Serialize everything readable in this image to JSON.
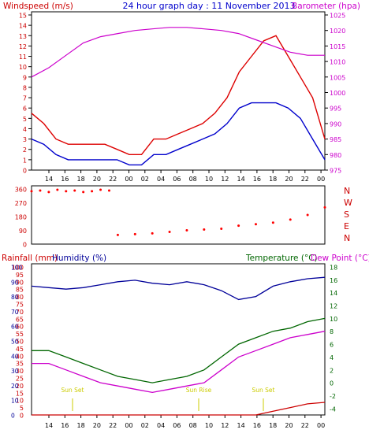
{
  "title": "24 hour graph day : 11 November 2013",
  "colors": {
    "wind": "#ff0000",
    "gust": "#dd0000",
    "avgwind": "#0000cc",
    "baro": "#cc00cc",
    "dir": "#ff0000",
    "humidity": "#000099",
    "temperature": "#006600",
    "dewpoint": "#cc00cc",
    "rain": "#cc0000",
    "sun": "#cccc00",
    "axis": "#000000",
    "grid": "#dddddd"
  },
  "chart_data": [
    {
      "id": "wind",
      "type": "line",
      "left_label": "Windspeed (m/s)",
      "right_label": "Barometer (hpa)",
      "left_ticks": [
        0,
        1,
        2,
        3,
        4,
        5,
        6,
        7,
        8,
        9,
        10,
        11,
        12,
        13,
        14,
        15
      ],
      "right_ticks": [
        975,
        980,
        985,
        990,
        995,
        1000,
        1005,
        1010,
        1015,
        1020,
        1025
      ],
      "x_ticks": [
        "14",
        "16",
        "18",
        "20",
        "22",
        "00",
        "02",
        "04",
        "06",
        "08",
        "10",
        "12",
        "14",
        "16",
        "18",
        "20",
        "22",
        "00"
      ],
      "series": [
        {
          "key": "gust",
          "x": [
            0,
            1,
            2,
            3,
            4,
            5,
            6,
            7,
            8,
            9,
            10,
            11,
            12,
            13,
            14,
            15,
            16,
            17,
            18,
            19,
            20,
            21,
            22,
            23,
            24
          ],
          "values": [
            5.5,
            4.5,
            3,
            2.5,
            2.5,
            2.5,
            2.5,
            2,
            1.5,
            1.5,
            3,
            3,
            3.5,
            4,
            4.5,
            5.5,
            7,
            9.5,
            11,
            12.5,
            13,
            11,
            9,
            7,
            3
          ]
        },
        {
          "key": "avgwind",
          "x": [
            0,
            1,
            2,
            3,
            4,
            5,
            6,
            7,
            8,
            9,
            10,
            11,
            12,
            13,
            14,
            15,
            16,
            17,
            18,
            19,
            20,
            21,
            22,
            23,
            24
          ],
          "values": [
            3,
            2.5,
            1.5,
            1,
            1,
            1,
            1,
            1,
            0.5,
            0.5,
            1.5,
            1.5,
            2,
            2.5,
            3,
            3.5,
            4.5,
            6,
            6.5,
            6.5,
            6.5,
            6,
            5,
            3,
            1
          ]
        },
        {
          "key": "baro",
          "x": [
            0,
            2,
            4,
            6,
            8,
            10,
            12,
            14,
            16,
            18,
            20,
            22,
            24,
            26,
            28,
            30,
            32,
            34
          ],
          "values": [
            1005,
            1008,
            1012,
            1016,
            1018,
            1019,
            1020,
            1020.5,
            1021,
            1021,
            1020.5,
            1020,
            1019,
            1017,
            1015,
            1013,
            1012,
            1012
          ]
        }
      ]
    },
    {
      "id": "direction",
      "type": "scatter",
      "left_ticks": [
        0,
        90,
        180,
        270,
        360
      ],
      "right_ticks": [
        "N",
        "W",
        "S",
        "E",
        "N"
      ],
      "points": [
        {
          "x": [
            0,
            1,
            2,
            3,
            4,
            5,
            6,
            7,
            8,
            9
          ],
          "values": [
            345,
            350,
            340,
            355,
            345,
            350,
            340,
            345,
            355,
            350
          ]
        },
        {
          "x": [
            10,
            12,
            14,
            16,
            18,
            20,
            22,
            24,
            26,
            28,
            30,
            32,
            34
          ],
          "values": [
            60,
            65,
            70,
            80,
            90,
            95,
            100,
            120,
            130,
            140,
            160,
            190,
            240
          ]
        }
      ]
    },
    {
      "id": "temp",
      "type": "line",
      "left_label_1": "Rainfall (mm)",
      "left_label_2": "Humidity (%)",
      "right_label_1": "Temperature (°C)",
      "right_label_2": "Dew Point (°C)",
      "left_ticks_1": [
        0,
        5,
        10,
        15,
        20,
        25,
        30,
        35,
        40,
        45,
        50,
        55,
        60,
        65,
        70,
        75,
        80,
        85,
        90,
        95,
        100
      ],
      "left_ticks_2": [
        0,
        10,
        20,
        30,
        40,
        50,
        60,
        70,
        80,
        90,
        100
      ],
      "right_ticks": [
        -4,
        -2,
        0,
        2,
        4,
        6,
        8,
        10,
        12,
        14,
        16,
        18
      ],
      "x_ticks": [
        "14",
        "16",
        "18",
        "20",
        "22",
        "00",
        "02",
        "04",
        "06",
        "08",
        "10",
        "12",
        "14",
        "16",
        "18",
        "20",
        "22",
        "00"
      ],
      "events": [
        "Sun Set",
        "Sun Rise",
        "Sun Set"
      ],
      "series": [
        {
          "key": "humidity",
          "x": [
            0,
            2,
            4,
            6,
            8,
            10,
            12,
            14,
            16,
            18,
            20,
            22,
            24,
            26,
            28,
            30,
            32,
            34
          ],
          "values": [
            87,
            86,
            85,
            86,
            88,
            90,
            91,
            89,
            88,
            90,
            88,
            84,
            78,
            80,
            87,
            90,
            92,
            93
          ]
        },
        {
          "key": "temperature",
          "x": [
            0,
            2,
            4,
            6,
            8,
            10,
            12,
            14,
            16,
            18,
            20,
            22,
            24,
            26,
            28,
            30,
            32,
            34
          ],
          "values": [
            5,
            5,
            4,
            3,
            2,
            1,
            0.5,
            0,
            0.5,
            1,
            2,
            4,
            6,
            7,
            8,
            8.5,
            9.5,
            10
          ]
        },
        {
          "key": "dewpoint",
          "x": [
            0,
            2,
            4,
            6,
            8,
            10,
            12,
            14,
            16,
            18,
            20,
            22,
            24,
            26,
            28,
            30,
            32,
            34
          ],
          "values": [
            3,
            3,
            2,
            1,
            0,
            -0.5,
            -1,
            -1.5,
            -1,
            -0.5,
            0,
            2,
            4,
            5,
            6,
            7,
            7.5,
            8
          ]
        },
        {
          "key": "rain",
          "x": [
            0,
            2,
            4,
            6,
            8,
            10,
            12,
            14,
            16,
            18,
            20,
            22,
            24,
            26,
            28,
            30,
            32,
            34
          ],
          "values": [
            0,
            0,
            0,
            0,
            0,
            0,
            0,
            0,
            0,
            0,
            0,
            0,
            0,
            0,
            0.5,
            1,
            1.5,
            1.7
          ]
        }
      ]
    }
  ]
}
